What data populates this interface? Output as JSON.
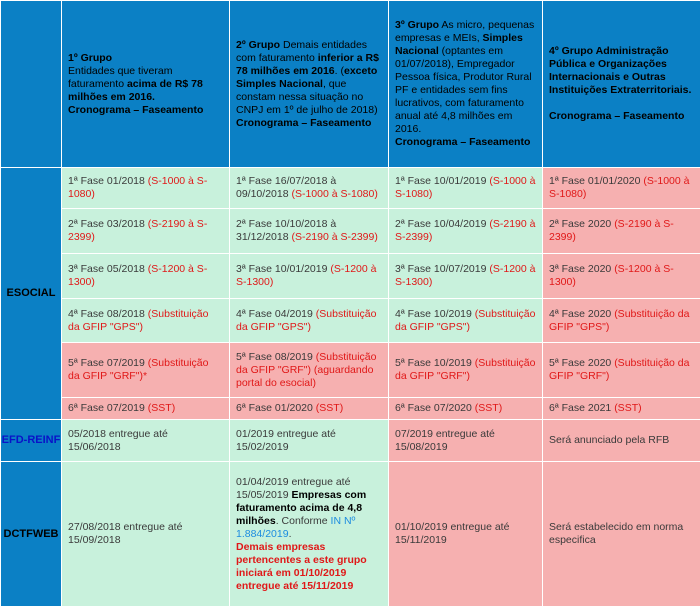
{
  "header": {
    "col1": {
      "group": "1º Grupo",
      "desc_a": " Entidades que tiveram faturamento ",
      "desc_b": "acima de R$ 78 milhões em 2016.",
      "cron": "Cronograma – Faseamento"
    },
    "col2": {
      "group": "2º Grupo",
      "desc_a": " Demais entidades com faturamento ",
      "desc_b": "inferior a R$ 78 milhões em 2016",
      "desc_c": ". (",
      "desc_d": "exceto Simples Nacional",
      "desc_e": ", que constam nessa situação no CNPJ em 1º de julho de 2018)",
      "cron": "Cronograma – Faseamento"
    },
    "col3": {
      "group": "3º Grupo",
      "desc_a": " As micro, pequenas empresas e MEIs, ",
      "desc_b": "Simples Nacional",
      "desc_c": " (optantes em 01/07/2018), Empregador Pessoa física, Produtor Rural PF e entidades sem fins lucrativos, com faturamento anual até 4,8 milhões em 2016.",
      "cron": "Cronograma – Faseamento"
    },
    "col4": {
      "group": "4º Grupo Administração Pública e Organizações Internacionais e Outras Instituições Extraterritoriais.",
      "cron": "Cronograma – Faseamento"
    }
  },
  "esocial": {
    "label": "ESOCIAL",
    "rows": [
      [
        {
          "t": "1ª Fase 01/2018 ",
          "r": "(S-1000 à S-1080)"
        },
        {
          "t": "1ª Fase 16/07/2018 à 09/10/2018 ",
          "r": "(S-1000 à S-1080)"
        },
        {
          "t": "1ª Fase 10/01/2019 ",
          "r": "(S-1000 à S-1080)"
        },
        {
          "t": "1ª Fase 01/01/2020 ",
          "r": "(S-1000 à S-1080)"
        }
      ],
      [
        {
          "t": "2ª Fase 03/2018 ",
          "r": "(S-2190 à S-2399)"
        },
        {
          "t": "2ª Fase 10/10/2018 à 31/12/2018 ",
          "r": "(S-2190 à S-2399)"
        },
        {
          "t": "2ª Fase 10/04/2019 ",
          "r": "(S-2190 à S-2399)"
        },
        {
          "t": "2ª Fase 2020 ",
          "r": "(S-2190 à S-2399)"
        }
      ],
      [
        {
          "t": "3ª Fase 05/2018 ",
          "r": "(S-1200 à S-1300)"
        },
        {
          "t": "3ª Fase 10/01/2019 ",
          "r": "(S-1200 à S-1300)"
        },
        {
          "t": "3ª Fase 10/07/2019 ",
          "r": "(S-1200 à S-1300)"
        },
        {
          "t": "3ª Fase 2020 ",
          "r": "(S-1200 à S-1300)"
        }
      ],
      [
        {
          "t": "4ª Fase 08/2018 ",
          "r": "(Substituição da GFIP \"GPS\")"
        },
        {
          "t": "4ª Fase 04/2019 ",
          "r": "(Substituição da GFIP \"GPS\")"
        },
        {
          "t": "4ª Fase 10/2019 ",
          "r": "(Substituição da GFIP \"GPS\")"
        },
        {
          "t": "4ª Fase 2020 ",
          "r": "(Substituição da GFIP \"GPS\")"
        }
      ],
      [
        {
          "t": "5ª Fase 07/2019 ",
          "r": "(Substituição da GFIP \"GRF\")*"
        },
        {
          "t": "5ª Fase 08/2019 ",
          "r": "(Substituição da GFIP \"GRF\") (aguardando portal do esocial)"
        },
        {
          "t": "5ª Fase 10/2019 ",
          "r": "(Substituição da GFIP \"GRF\")"
        },
        {
          "t": "5ª Fase 2020 ",
          "r": "(Substituição da GFIP \"GRF\")"
        }
      ],
      [
        {
          "t": "6ª Fase 07/2019 ",
          "r": "(SST)"
        },
        {
          "t": "6ª Fase 01/2020 ",
          "r": "(SST)"
        },
        {
          "t": "6ª Fase 07/2020 ",
          "r": "(SST)"
        },
        {
          "t": "6ª Fase 2021 ",
          "r": "(SST)"
        }
      ]
    ]
  },
  "efd": {
    "label": "EFD-REINF",
    "cells": [
      "05/2018 entregue até 15/06/2018",
      "01/2019 entregue até 15/02/2019",
      "07/2019 entregue até 15/08/2019",
      "Será anunciado pela RFB"
    ]
  },
  "dctf": {
    "label": "DCTFWEB",
    "col1": "27/08/2018 entregue até 15/09/2018",
    "col2": {
      "a": "01/04/2019 entregue até 15/05/2019 ",
      "b": "Empresas com faturamento acima de 4,8 milhões",
      "c": ". Conforme ",
      "d": "IN Nº 1.884/2019",
      "e": ".",
      "f": "Demais empresas pertencentes a este grupo iniciará em 01/10/2019 entregue até 15/11/2019"
    },
    "col3": "01/10/2019 entregue até 15/11/2019",
    "col4": "Será estabelecido em norma especifica"
  },
  "colors": {
    "header_blue": "#0b80c5",
    "green": "#c8f1dc",
    "pink": "#f6b0b0",
    "red_text": "#e01818",
    "link_blue": "#1c8ce0"
  }
}
